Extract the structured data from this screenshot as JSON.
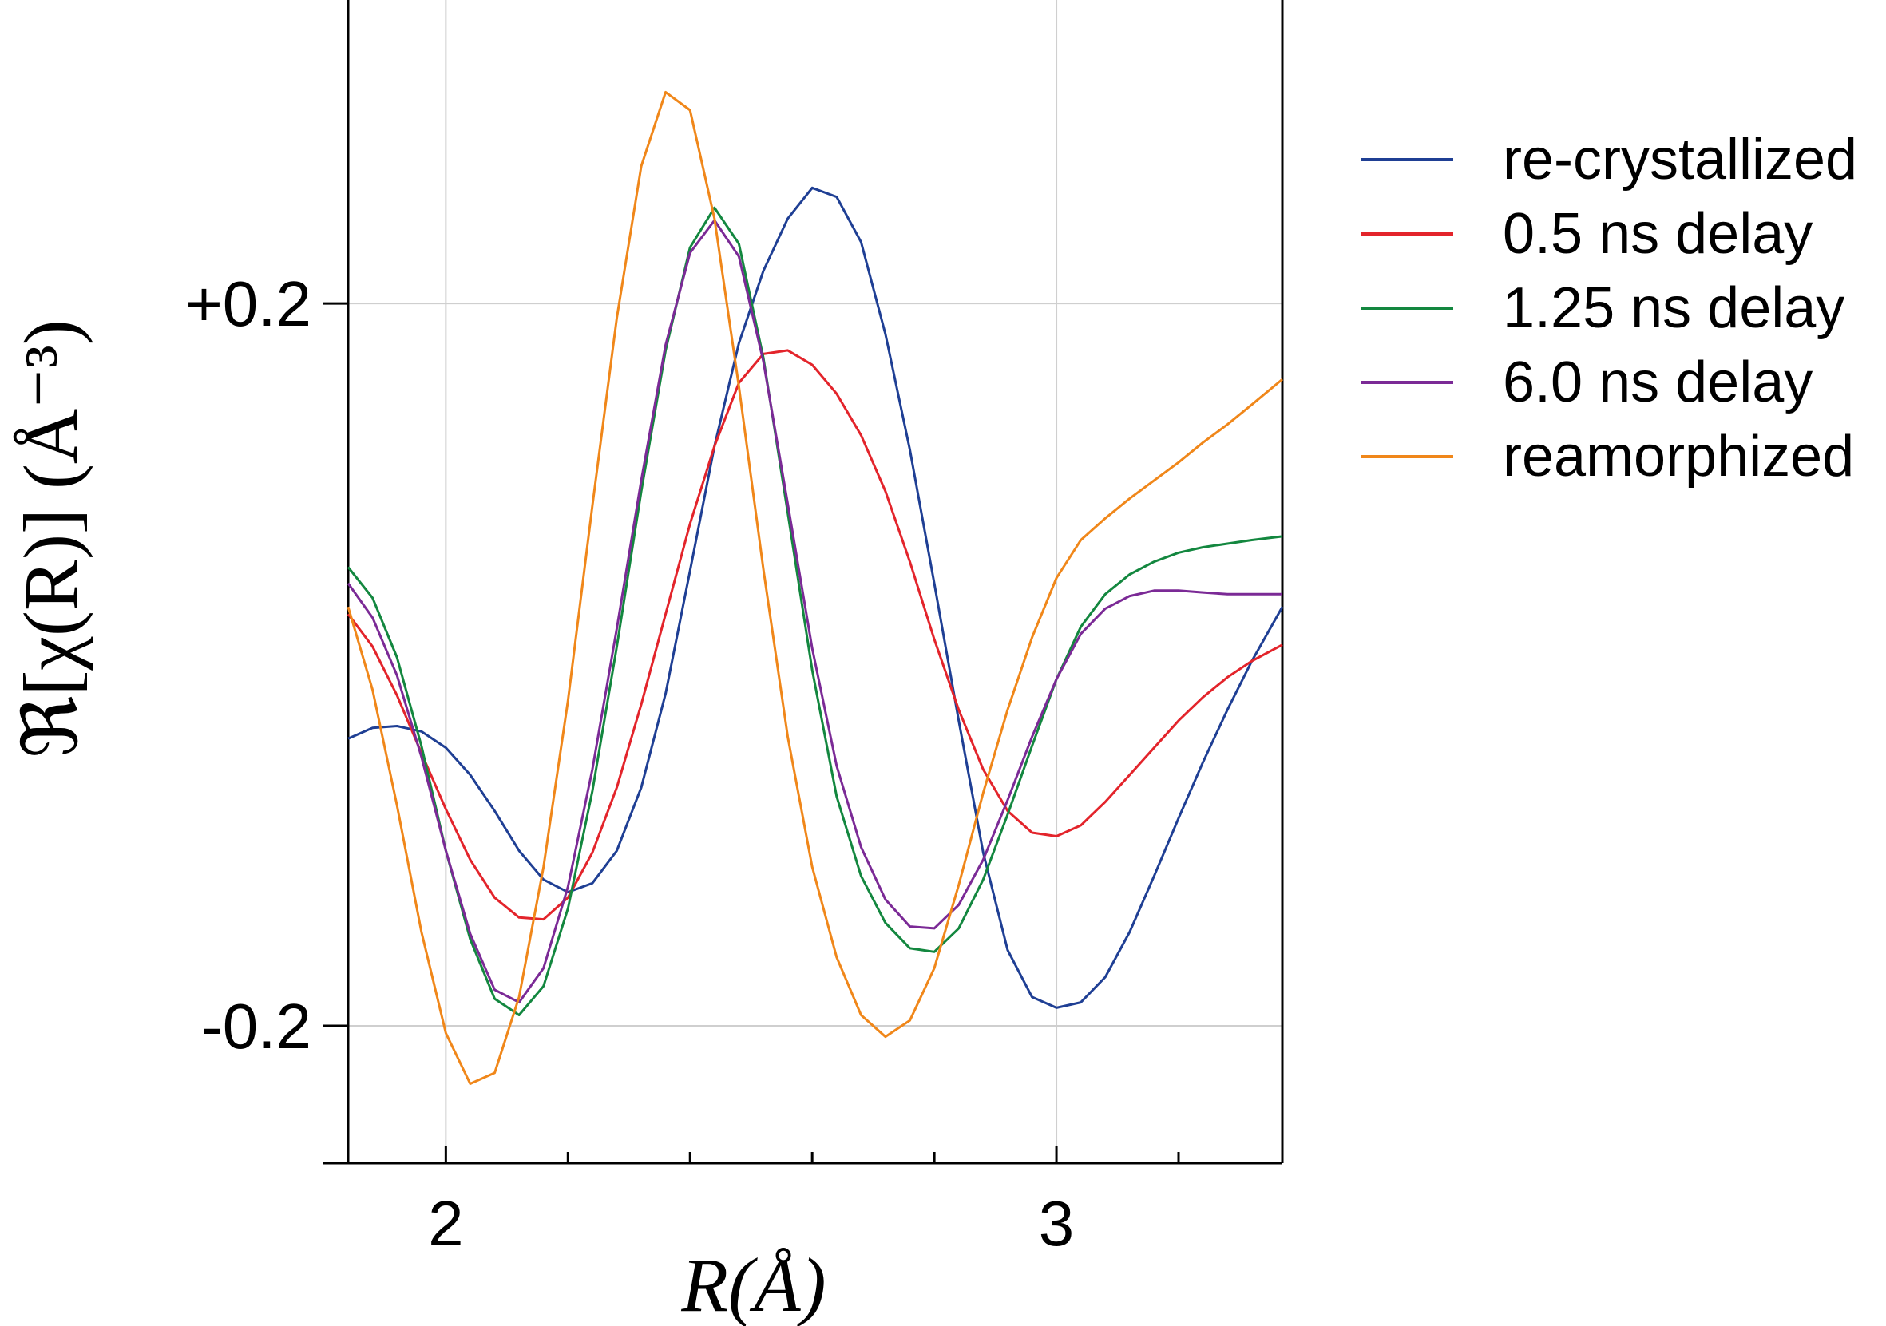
{
  "chart_data": {
    "type": "line",
    "title": "",
    "xlabel": "R(Å)",
    "ylabel": "ℜ[χ(R)] (Å⁻³)",
    "xlim": [
      1.84,
      3.37
    ],
    "ylim": [
      -0.276,
      0.368
    ],
    "x_ticks": [
      {
        "value": 2,
        "label": "2"
      },
      {
        "value": 3,
        "label": "3"
      }
    ],
    "x_minor_ticks": [
      1.8,
      2.2,
      2.4,
      2.6,
      2.8,
      3.2
    ],
    "y_ticks": [
      {
        "value": 0.2,
        "label": "+0.2"
      },
      {
        "value": -0.2,
        "label": "-0.2"
      }
    ],
    "grid": true,
    "legend_position": "right",
    "series": [
      {
        "name": "re-crystallized",
        "color": "#1f3f94",
        "x": [
          1.84,
          1.88,
          1.92,
          1.96,
          2.0,
          2.04,
          2.08,
          2.12,
          2.16,
          2.2,
          2.24,
          2.28,
          2.32,
          2.36,
          2.4,
          2.44,
          2.48,
          2.52,
          2.56,
          2.6,
          2.64,
          2.68,
          2.72,
          2.76,
          2.8,
          2.84,
          2.88,
          2.92,
          2.96,
          3.0,
          3.04,
          3.08,
          3.12,
          3.16,
          3.2,
          3.24,
          3.28,
          3.32,
          3.37
        ],
        "y": [
          -0.041,
          -0.035,
          -0.034,
          -0.037,
          -0.046,
          -0.061,
          -0.081,
          -0.103,
          -0.119,
          -0.126,
          -0.121,
          -0.103,
          -0.068,
          -0.016,
          0.052,
          0.121,
          0.178,
          0.218,
          0.247,
          0.264,
          0.259,
          0.234,
          0.183,
          0.119,
          0.045,
          -0.031,
          -0.104,
          -0.158,
          -0.184,
          -0.19,
          -0.187,
          -0.173,
          -0.148,
          -0.117,
          -0.085,
          -0.054,
          -0.025,
          0.002,
          0.032
        ]
      },
      {
        "name": "0.5 ns delay",
        "color": "#e3242b",
        "x": [
          1.84,
          1.88,
          1.92,
          1.96,
          2.0,
          2.04,
          2.08,
          2.12,
          2.16,
          2.2,
          2.24,
          2.28,
          2.32,
          2.36,
          2.4,
          2.44,
          2.48,
          2.52,
          2.56,
          2.6,
          2.64,
          2.68,
          2.72,
          2.76,
          2.8,
          2.84,
          2.88,
          2.92,
          2.96,
          3.0,
          3.04,
          3.08,
          3.12,
          3.16,
          3.2,
          3.24,
          3.28,
          3.32,
          3.37
        ],
        "y": [
          0.028,
          0.01,
          -0.017,
          -0.049,
          -0.08,
          -0.108,
          -0.129,
          -0.14,
          -0.141,
          -0.129,
          -0.104,
          -0.068,
          -0.022,
          0.028,
          0.078,
          0.121,
          0.156,
          0.172,
          0.174,
          0.166,
          0.15,
          0.127,
          0.096,
          0.057,
          0.014,
          -0.025,
          -0.058,
          -0.081,
          -0.093,
          -0.095,
          -0.089,
          -0.076,
          -0.061,
          -0.046,
          -0.031,
          -0.018,
          -0.007,
          0.002,
          0.011
        ]
      },
      {
        "name": "1.25 ns delay",
        "color": "#13873f",
        "x": [
          1.84,
          1.88,
          1.92,
          1.96,
          2.0,
          2.04,
          2.08,
          2.12,
          2.16,
          2.2,
          2.24,
          2.28,
          2.32,
          2.36,
          2.4,
          2.44,
          2.48,
          2.52,
          2.56,
          2.6,
          2.64,
          2.68,
          2.72,
          2.76,
          2.8,
          2.84,
          2.88,
          2.92,
          2.96,
          3.0,
          3.04,
          3.08,
          3.12,
          3.16,
          3.2,
          3.24,
          3.28,
          3.32,
          3.37
        ],
        "y": [
          0.054,
          0.037,
          0.004,
          -0.045,
          -0.103,
          -0.152,
          -0.185,
          -0.194,
          -0.178,
          -0.135,
          -0.07,
          0.01,
          0.096,
          0.174,
          0.231,
          0.253,
          0.233,
          0.17,
          0.084,
          -0.003,
          -0.073,
          -0.117,
          -0.143,
          -0.157,
          -0.159,
          -0.146,
          -0.119,
          -0.083,
          -0.045,
          -0.008,
          0.021,
          0.039,
          0.05,
          0.057,
          0.062,
          0.065,
          0.067,
          0.069,
          0.071
        ]
      },
      {
        "name": "6.0 ns delay",
        "color": "#7b2a96",
        "x": [
          1.84,
          1.88,
          1.92,
          1.96,
          2.0,
          2.04,
          2.08,
          2.12,
          2.16,
          2.2,
          2.24,
          2.28,
          2.32,
          2.36,
          2.4,
          2.44,
          2.48,
          2.52,
          2.56,
          2.6,
          2.64,
          2.68,
          2.72,
          2.76,
          2.8,
          2.84,
          2.88,
          2.92,
          2.96,
          3.0,
          3.04,
          3.08,
          3.12,
          3.16,
          3.2,
          3.24,
          3.28,
          3.32,
          3.37
        ],
        "y": [
          0.045,
          0.026,
          -0.006,
          -0.051,
          -0.103,
          -0.149,
          -0.18,
          -0.187,
          -0.168,
          -0.123,
          -0.058,
          0.02,
          0.102,
          0.177,
          0.228,
          0.246,
          0.226,
          0.168,
          0.089,
          0.009,
          -0.056,
          -0.101,
          -0.13,
          -0.145,
          -0.146,
          -0.133,
          -0.108,
          -0.075,
          -0.04,
          -0.008,
          0.017,
          0.031,
          0.038,
          0.041,
          0.041,
          0.04,
          0.039,
          0.039,
          0.039
        ]
      },
      {
        "name": "reamorphized",
        "color": "#f0871a",
        "x": [
          1.84,
          1.88,
          1.92,
          1.96,
          2.0,
          2.04,
          2.08,
          2.12,
          2.16,
          2.2,
          2.24,
          2.28,
          2.32,
          2.36,
          2.4,
          2.44,
          2.48,
          2.52,
          2.56,
          2.6,
          2.64,
          2.68,
          2.72,
          2.76,
          2.8,
          2.84,
          2.88,
          2.92,
          2.96,
          3.0,
          3.04,
          3.08,
          3.12,
          3.16,
          3.2,
          3.24,
          3.28,
          3.32,
          3.37
        ],
        "y": [
          0.032,
          -0.014,
          -0.078,
          -0.148,
          -0.204,
          -0.232,
          -0.226,
          -0.184,
          -0.112,
          -0.02,
          0.088,
          0.192,
          0.276,
          0.317,
          0.307,
          0.247,
          0.154,
          0.053,
          -0.04,
          -0.112,
          -0.162,
          -0.194,
          -0.206,
          -0.197,
          -0.168,
          -0.122,
          -0.071,
          -0.025,
          0.015,
          0.048,
          0.069,
          0.081,
          0.092,
          0.102,
          0.112,
          0.123,
          0.133,
          0.144,
          0.158
        ]
      }
    ]
  }
}
